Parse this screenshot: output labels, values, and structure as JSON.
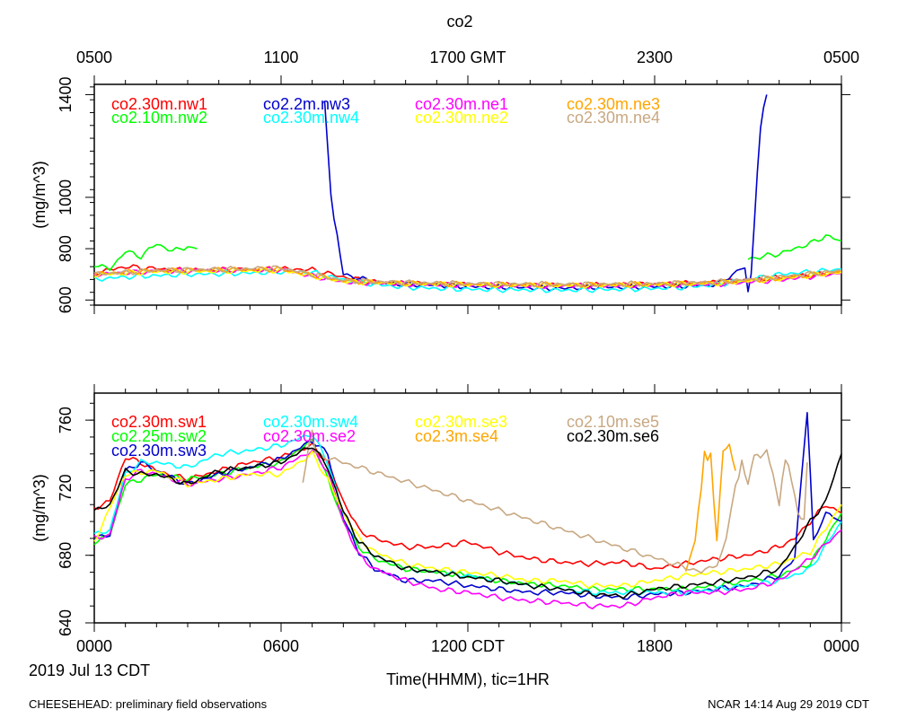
{
  "title": "co2",
  "top_axis_ticks": [
    "0500",
    "1100",
    "1700 GMT",
    "2300",
    "0500"
  ],
  "bottom_axis_ticks": [
    "0000",
    "0600",
    "1200 CDT",
    "1800",
    "0000"
  ],
  "date_label": "2019 Jul 13 CDT",
  "xlabel": "Time(HHMM), tic=1HR",
  "footer_left": "CHEESEHEAD: preliminary field observations",
  "footer_right": "NCAR 14:14 Aug 29 2019 CDT",
  "colors": {
    "red": "#ff0000",
    "green": "#00ff00",
    "blue": "#0000cd",
    "cyan": "#00ffff",
    "magenta": "#ff00ff",
    "yellow": "#ffff00",
    "orange": "#ffa500",
    "tan": "#c8a882",
    "black": "#000000"
  },
  "chart_data": [
    {
      "type": "line",
      "name": "upper-panel",
      "ylabel": "(mg/m^3)",
      "ylim": [
        580,
        1440
      ],
      "xlim": [
        0,
        24
      ],
      "yticks": [
        600,
        800,
        1000,
        1400
      ],
      "series": [
        {
          "name": "co2.30m.nw1",
          "color": "red",
          "x": [
            0,
            1,
            2,
            3,
            4,
            5,
            6,
            7,
            8,
            9,
            10,
            11,
            12,
            13,
            14,
            15,
            16,
            17,
            18,
            19,
            20,
            21,
            22,
            23,
            24
          ],
          "y": [
            705,
            730,
            722,
            715,
            718,
            718,
            722,
            718,
            690,
            670,
            665,
            662,
            660,
            658,
            658,
            657,
            658,
            660,
            662,
            665,
            670,
            678,
            688,
            698,
            710
          ]
        },
        {
          "name": "co2.10m.nw2",
          "color": "green",
          "x": [
            0,
            0.5,
            1,
            1.5,
            2,
            2.5,
            3,
            3.3
          ],
          "y": [
            740,
            720,
            790,
            770,
            820,
            790,
            810,
            800
          ]
        },
        {
          "name": "co2.10m.nw2 (late)",
          "color": "green",
          "x": [
            21,
            21.5,
            22,
            22.5,
            23,
            23.5,
            24
          ],
          "y": [
            760,
            770,
            780,
            800,
            820,
            850,
            830
          ]
        },
        {
          "name": "co2.2m.nw3",
          "color": "blue",
          "x": [
            7.4,
            7.5,
            7.6,
            7.8,
            8,
            9,
            10,
            11,
            12,
            13,
            14,
            15,
            16,
            17,
            18,
            19,
            20,
            20.5,
            20.9,
            21.0,
            21.1,
            21.2,
            21.4,
            21.6
          ],
          "y": [
            1370,
            1200,
            1000,
            850,
            700,
            670,
            660,
            658,
            652,
            650,
            648,
            645,
            650,
            650,
            652,
            655,
            660,
            700,
            730,
            630,
            700,
            900,
            1280,
            1400
          ]
        },
        {
          "name": "co2.30m.nw4",
          "color": "cyan",
          "x": [
            0,
            1,
            2,
            3,
            4,
            5,
            6,
            7,
            8,
            9,
            10,
            11,
            12,
            13,
            14,
            15,
            16,
            17,
            18,
            19,
            20,
            21,
            22,
            23,
            24
          ],
          "y": [
            680,
            690,
            695,
            700,
            702,
            705,
            710,
            708,
            680,
            660,
            650,
            645,
            642,
            640,
            640,
            638,
            640,
            642,
            645,
            650,
            660,
            680,
            700,
            710,
            720
          ]
        },
        {
          "name": "co2.30m.ne1",
          "color": "magenta",
          "x": [
            0,
            2,
            4,
            6,
            8,
            10,
            12,
            14,
            16,
            18,
            20,
            22,
            24
          ],
          "y": [
            700,
            712,
            715,
            718,
            670,
            662,
            658,
            655,
            655,
            658,
            662,
            678,
            705
          ]
        },
        {
          "name": "co2.30m.ne2",
          "color": "yellow",
          "x": [
            0,
            2,
            4,
            6,
            8,
            10,
            12,
            14,
            16,
            18,
            20,
            22,
            24
          ],
          "y": [
            698,
            710,
            712,
            716,
            672,
            664,
            660,
            657,
            657,
            660,
            665,
            682,
            708
          ]
        },
        {
          "name": "co2.30m.ne3",
          "color": "orange",
          "x": [
            0,
            2,
            4,
            6,
            8,
            10,
            12,
            14,
            16,
            18,
            20,
            22,
            24
          ],
          "y": [
            702,
            715,
            718,
            720,
            675,
            666,
            662,
            660,
            660,
            662,
            668,
            685,
            712
          ]
        },
        {
          "name": "co2.30m.ne4",
          "color": "tan",
          "x": [
            0,
            2,
            4,
            6,
            8,
            10,
            12,
            14,
            16,
            18,
            20,
            22,
            24
          ],
          "y": [
            700,
            716,
            720,
            725,
            676,
            668,
            664,
            662,
            661,
            664,
            670,
            690,
            715
          ]
        }
      ]
    },
    {
      "type": "line",
      "name": "lower-panel",
      "ylabel": "(mg/m^3)",
      "ylim": [
        640,
        776
      ],
      "xlim": [
        0,
        24
      ],
      "yticks": [
        640,
        680,
        720,
        760
      ],
      "series": [
        {
          "name": "co2.30m.sw1",
          "color": "red",
          "x": [
            0,
            0.5,
            1,
            1.5,
            2,
            3,
            4,
            5,
            6,
            7,
            7.5,
            8,
            8.5,
            9,
            10,
            11,
            12,
            13,
            14,
            15,
            16,
            17,
            18,
            19,
            20,
            21,
            22,
            22.5,
            23,
            23.5,
            24
          ],
          "y": [
            708,
            712,
            738,
            735,
            730,
            725,
            730,
            735,
            738,
            745,
            735,
            712,
            695,
            690,
            685,
            685,
            688,
            682,
            678,
            676,
            675,
            676,
            672,
            675,
            678,
            680,
            685,
            690,
            700,
            710,
            705
          ]
        },
        {
          "name": "co2.25m.sw2",
          "color": "green",
          "x": [
            0,
            0.5,
            1,
            1.5,
            2,
            3,
            4,
            5,
            6,
            7,
            7.5,
            8,
            8.5,
            9,
            10,
            11,
            12,
            13,
            14,
            15,
            16,
            17,
            18,
            19,
            20,
            21,
            22,
            23,
            24
          ],
          "y": [
            688,
            692,
            722,
            725,
            728,
            725,
            728,
            732,
            735,
            748,
            725,
            700,
            685,
            678,
            672,
            670,
            668,
            665,
            663,
            662,
            660,
            660,
            660,
            660,
            662,
            665,
            668,
            675,
            705
          ]
        },
        {
          "name": "co2.30m.sw3",
          "color": "blue",
          "x": [
            0,
            0.5,
            1,
            1.5,
            2,
            3,
            4,
            5,
            6,
            7,
            7.5,
            8,
            8.5,
            9,
            10,
            11,
            12,
            13,
            14,
            15,
            16,
            17,
            18,
            19,
            20,
            21,
            22,
            22.5,
            22.9,
            23.1,
            23.5,
            24
          ],
          "y": [
            690,
            692,
            730,
            735,
            730,
            722,
            728,
            732,
            737,
            748,
            740,
            702,
            682,
            672,
            665,
            665,
            662,
            660,
            658,
            658,
            656,
            655,
            657,
            658,
            660,
            662,
            668,
            678,
            766,
            690,
            705,
            700
          ]
        },
        {
          "name": "co2.30m.sw4",
          "color": "cyan",
          "x": [
            0,
            0.5,
            1,
            1.5,
            2,
            3,
            4,
            5,
            6,
            7,
            7.5,
            8,
            8.5,
            9,
            10,
            11,
            12,
            13,
            14,
            15,
            16,
            17,
            18,
            19,
            20,
            21,
            22,
            23,
            24
          ],
          "y": [
            692,
            695,
            728,
            735,
            735,
            732,
            740,
            742,
            745,
            752,
            735,
            705,
            688,
            680,
            672,
            670,
            668,
            665,
            662,
            660,
            658,
            658,
            658,
            658,
            660,
            662,
            665,
            672,
            700
          ]
        },
        {
          "name": "co2.30m.se2",
          "color": "magenta",
          "x": [
            0,
            0.5,
            1,
            1.5,
            2,
            3,
            4,
            5,
            6,
            7,
            7.5,
            8,
            8.5,
            9,
            10,
            11,
            12,
            13,
            14,
            15,
            16,
            17,
            18,
            19,
            20,
            21,
            22,
            23,
            24
          ],
          "y": [
            690,
            692,
            725,
            730,
            728,
            722,
            725,
            728,
            732,
            742,
            730,
            700,
            680,
            672,
            665,
            660,
            658,
            655,
            653,
            652,
            650,
            650,
            655,
            658,
            658,
            660,
            665,
            678,
            695
          ]
        },
        {
          "name": "co2.30m.se3",
          "color": "yellow",
          "x": [
            0,
            1,
            2,
            3,
            4,
            5,
            6,
            7,
            7.5,
            8,
            8.5,
            9,
            10,
            11,
            12,
            13,
            14,
            15,
            16,
            17,
            18,
            19,
            20,
            21,
            22,
            23,
            24
          ],
          "y": [
            688,
            728,
            730,
            722,
            725,
            728,
            728,
            740,
            725,
            705,
            690,
            682,
            675,
            672,
            670,
            668,
            665,
            665,
            662,
            662,
            665,
            668,
            670,
            672,
            675,
            682,
            710
          ]
        },
        {
          "name": "co2.3m.se4",
          "color": "orange",
          "x": [
            19,
            19.3,
            19.5,
            19.6,
            19.7,
            19.8,
            19.9,
            20,
            20.2,
            20.4,
            20.6
          ],
          "y": [
            670,
            690,
            720,
            742,
            735,
            742,
            710,
            690,
            742,
            745,
            730
          ]
        },
        {
          "name": "co2.10m.se5",
          "color": "tan",
          "x": [
            6.7,
            6.8,
            6.9,
            7,
            7.1,
            19.5,
            20,
            20.3,
            20.6,
            20.8,
            21,
            21.2,
            21.4,
            21.6,
            21.8,
            22,
            22.2,
            22.4,
            22.6,
            22.8,
            22.9
          ],
          "y": [
            722,
            735,
            745,
            755,
            740,
            670,
            675,
            690,
            720,
            735,
            722,
            740,
            738,
            742,
            728,
            710,
            738,
            725,
            705,
            700,
            735
          ]
        },
        {
          "name": "co2.30m.se6",
          "color": "black",
          "x": [
            0,
            0.5,
            1,
            1.5,
            2,
            3,
            4,
            5,
            6,
            7,
            7.5,
            8,
            8.5,
            9,
            10,
            11,
            12,
            13,
            14,
            15,
            16,
            17,
            18,
            19,
            20,
            21,
            22,
            22.5,
            23,
            23.5,
            24
          ],
          "y": [
            706,
            710,
            730,
            728,
            728,
            722,
            730,
            732,
            735,
            745,
            732,
            706,
            688,
            680,
            672,
            670,
            667,
            665,
            662,
            660,
            657,
            656,
            660,
            662,
            664,
            667,
            672,
            685,
            700,
            712,
            740
          ]
        }
      ]
    }
  ],
  "legend_upper": [
    {
      "label": "co2.30m.nw1",
      "color": "red"
    },
    {
      "label": "co2.10m.nw2",
      "color": "green"
    },
    {
      "label": "co2.2m.nw3",
      "color": "blue"
    },
    {
      "label": "co2.30m.nw4",
      "color": "cyan"
    },
    {
      "label": "co2.30m.ne1",
      "color": "magenta"
    },
    {
      "label": "co2.30m.ne2",
      "color": "yellow"
    },
    {
      "label": "co2.30m.ne3",
      "color": "orange"
    },
    {
      "label": "co2.30m.ne4",
      "color": "tan"
    }
  ],
  "legend_lower": [
    {
      "label": "co2.30m.sw1",
      "color": "red"
    },
    {
      "label": "co2.25m.sw2",
      "color": "green"
    },
    {
      "label": "co2.30m.sw3",
      "color": "blue"
    },
    {
      "label": "co2.30m.sw4",
      "color": "cyan"
    },
    {
      "label": "co2.30m.se2",
      "color": "magenta"
    },
    {
      "label": "co2.30m.se3",
      "color": "yellow"
    },
    {
      "label": "co2.3m.se4",
      "color": "orange"
    },
    {
      "label": "co2.10m.se5",
      "color": "tan"
    },
    {
      "label": "co2.30m.se6",
      "color": "black"
    }
  ]
}
